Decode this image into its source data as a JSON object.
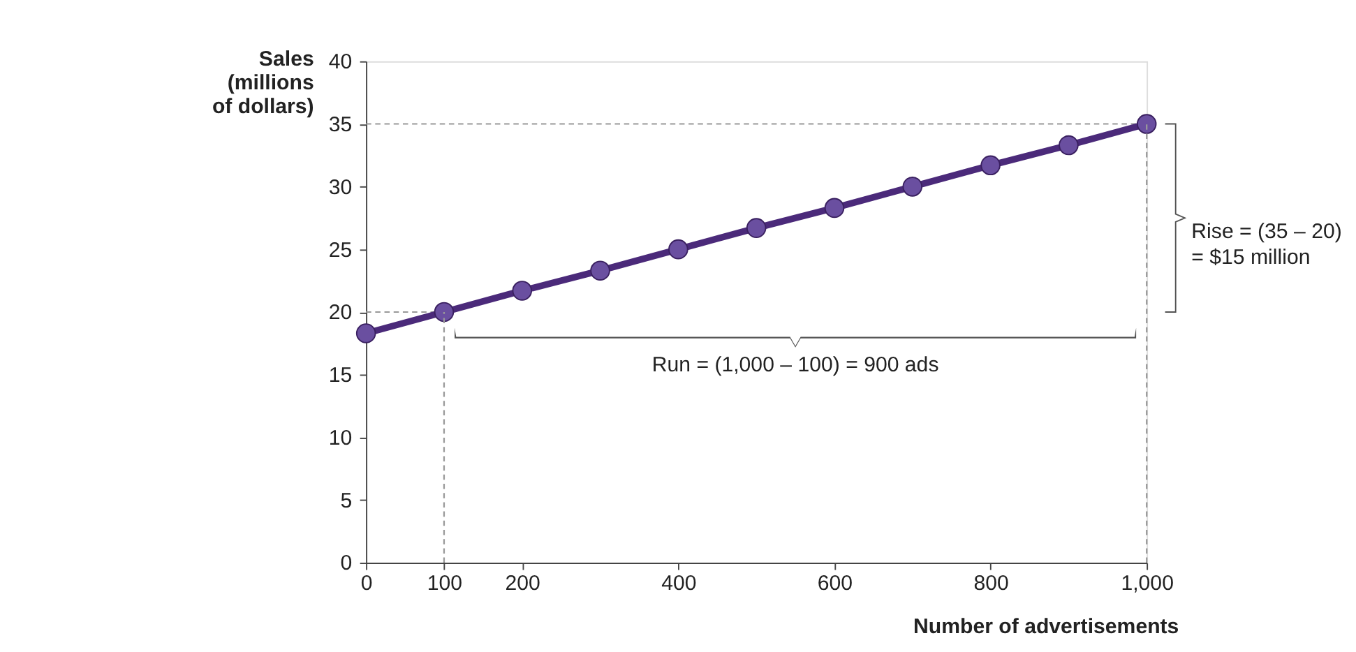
{
  "chart_data": {
    "type": "line",
    "xlabel": "Number of advertisements",
    "ylabel": "Sales\n(millions\nof dollars)",
    "x": [
      0,
      100,
      200,
      300,
      400,
      500,
      600,
      700,
      800,
      900,
      1000
    ],
    "series": [
      {
        "color": "#4b2a7a",
        "values": [
          18.3,
          20,
          21.7,
          23.3,
          25,
          26.7,
          28.3,
          30,
          31.7,
          33.3,
          35
        ]
      }
    ],
    "xlim": [
      0,
      1000
    ],
    "xticks": [
      0,
      100,
      200,
      400,
      600,
      800,
      {
        "value": 1000,
        "label": "1,000"
      }
    ],
    "ylim": [
      0,
      40
    ],
    "yticks": [
      0,
      5,
      10,
      15,
      20,
      25,
      30,
      35,
      40
    ],
    "ref_lines": [
      {
        "axis": "x",
        "value": 100,
        "line_style": "dashed",
        "color": "#999999"
      },
      {
        "axis": "y",
        "value": 20,
        "line_style": "dashed",
        "color": "#999999"
      },
      {
        "axis": "x",
        "value": 1000,
        "line_style": "dashed",
        "color": "#999999"
      },
      {
        "axis": "y",
        "value": 35,
        "line_style": "dashed",
        "color": "#999999"
      }
    ],
    "annotations": [
      "Run = (1,000 – 100) = 900 ads",
      "Rise = (35 – 20)\n= $15 million"
    ],
    "marker": "circle",
    "line_style": "solid",
    "grid": false
  }
}
